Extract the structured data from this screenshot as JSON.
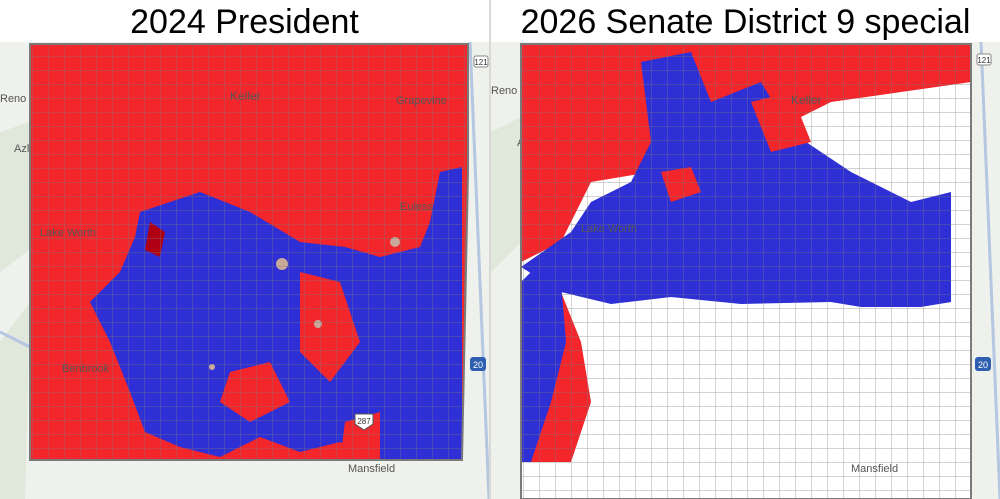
{
  "panels": [
    {
      "title": "2024 President",
      "labels": [
        "Reno",
        "Azle",
        "Keller",
        "Grapevine",
        "Lake Worth",
        "Benbrook",
        "Mansfield",
        "Euless"
      ],
      "highways": [
        "121",
        "20",
        "287"
      ]
    },
    {
      "title": "2026 Senate District 9 special",
      "labels": [
        "Reno",
        "Azle",
        "Keller",
        "Lake Worth",
        "Mansfield"
      ],
      "highways": [
        "121",
        "20"
      ]
    }
  ],
  "colors": {
    "republican": "#f2262b",
    "democrat": "#2f2fd6",
    "boundary": "#7a7a7a",
    "no_election": "#ffffff",
    "tie": "#c9a99a"
  }
}
